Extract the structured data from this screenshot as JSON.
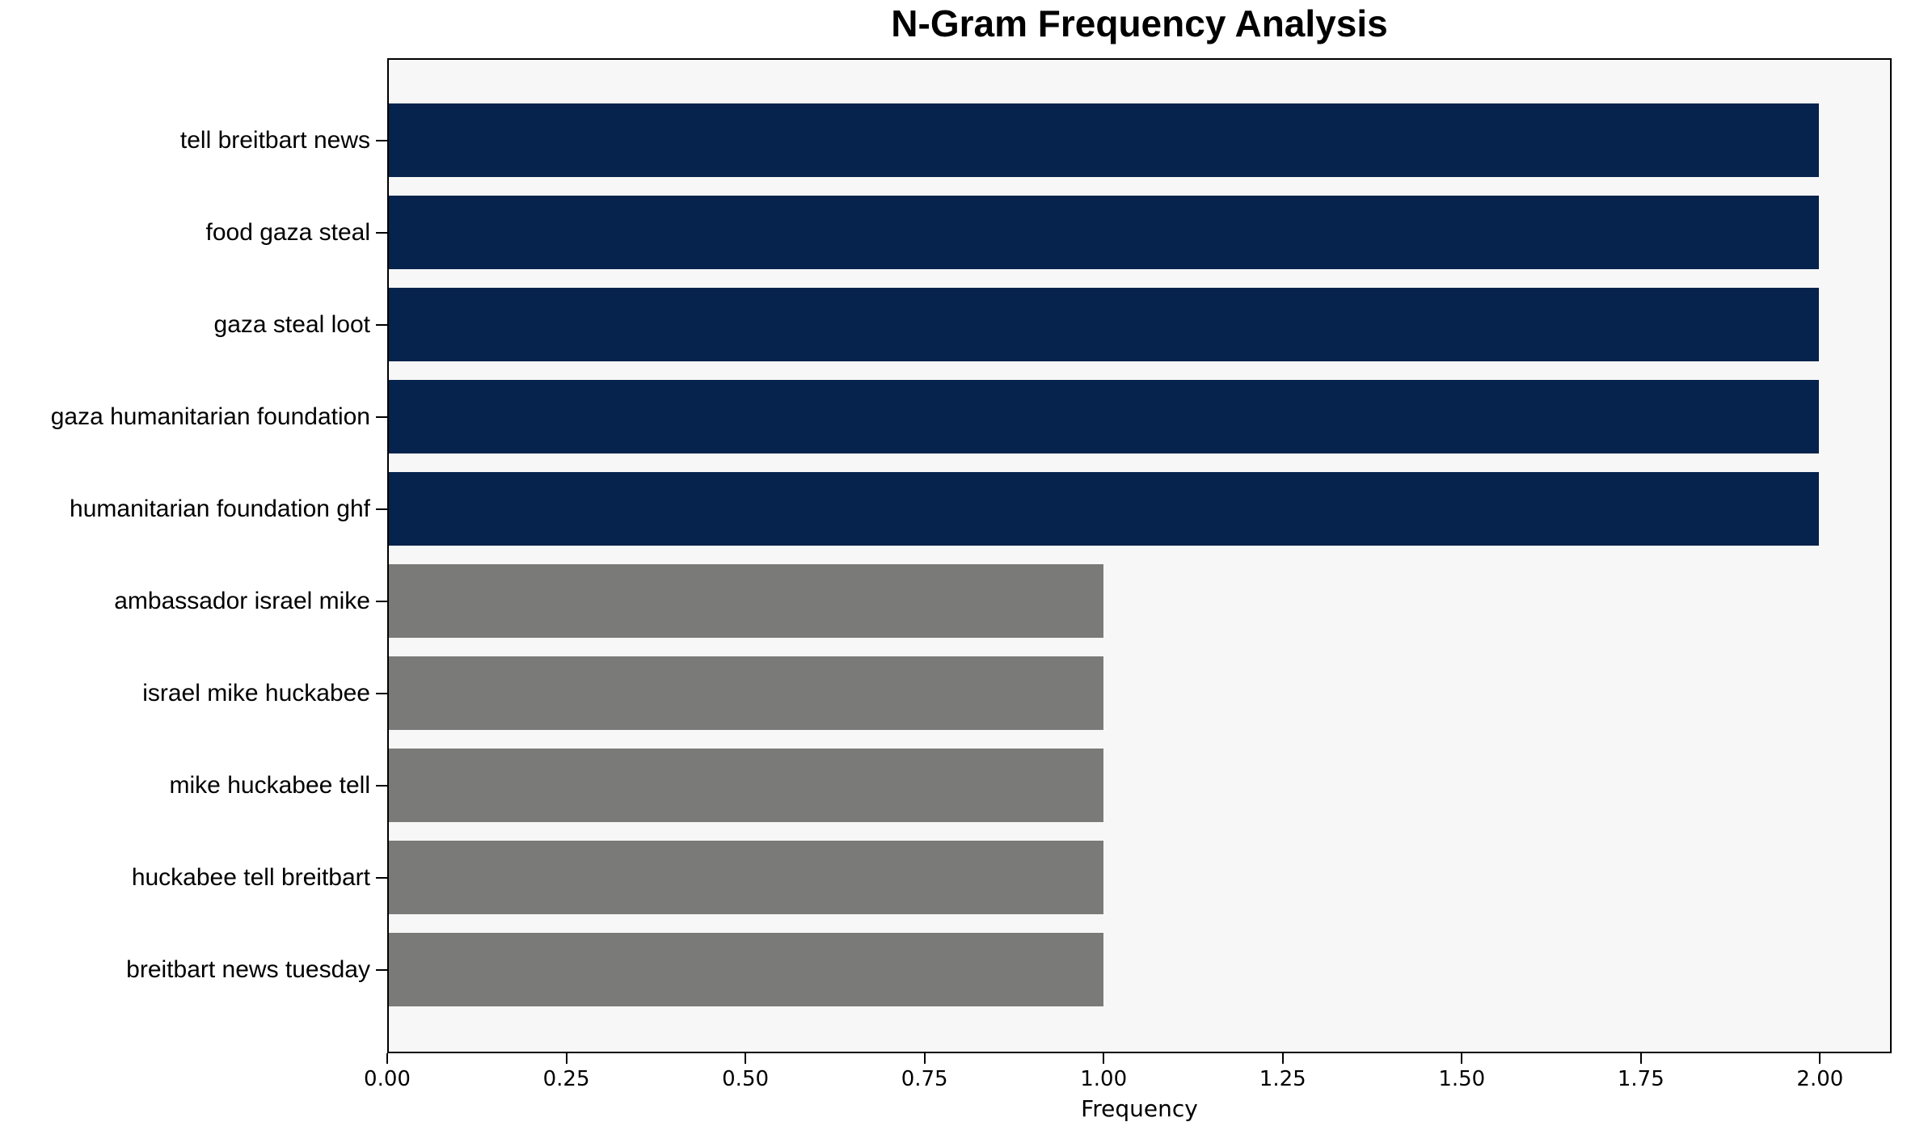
{
  "chart_data": {
    "type": "bar",
    "orientation": "horizontal",
    "title": "N-Gram Frequency Analysis",
    "xlabel": "Frequency",
    "ylabel": "",
    "categories": [
      "tell breitbart news",
      "food gaza steal",
      "gaza steal loot",
      "gaza humanitarian foundation",
      "humanitarian foundation ghf",
      "ambassador israel mike",
      "israel mike huckabee",
      "mike huckabee tell",
      "huckabee tell breitbart",
      "breitbart news tuesday"
    ],
    "values": [
      2,
      2,
      2,
      2,
      2,
      1,
      1,
      1,
      1,
      1
    ],
    "bar_colors": [
      "#05234c",
      "#05234c",
      "#05234c",
      "#05234c",
      "#05234c",
      "#7a7a78",
      "#7a7a78",
      "#7a7a78",
      "#7a7a78",
      "#7a7a78"
    ],
    "xlim": [
      0,
      2.1
    ],
    "x_tick_values": [
      0,
      0.25,
      0.5,
      0.75,
      1.0,
      1.25,
      1.5,
      1.75,
      2.0
    ],
    "x_tick_labels": [
      "0.00",
      "0.25",
      "0.50",
      "0.75",
      "1.00",
      "1.25",
      "1.50",
      "1.75",
      "2.00"
    ],
    "grid": false,
    "legend_position": "none",
    "plot_background": "#f7f7f7",
    "figure_background": "#ffffff",
    "spine_color": "#000000"
  }
}
